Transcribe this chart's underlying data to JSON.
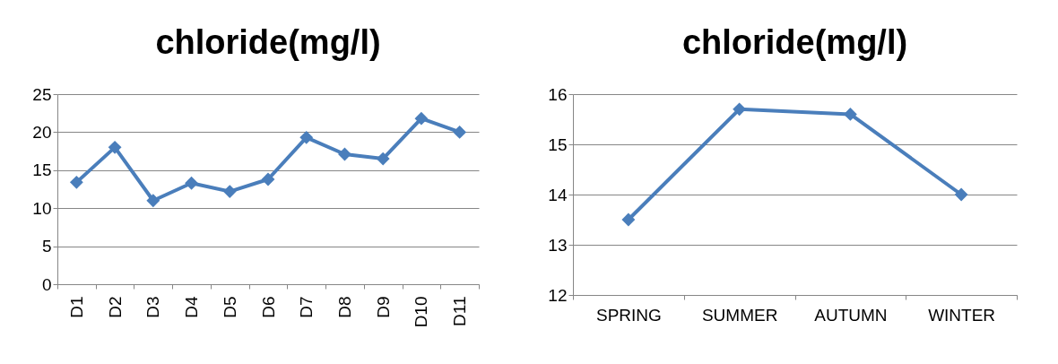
{
  "chart_data": [
    {
      "type": "line",
      "title": "chloride(mg/l)",
      "categories": [
        "D1",
        "D2",
        "D3",
        "D4",
        "D5",
        "D6",
        "D7",
        "D8",
        "D9",
        "D10",
        "D11"
      ],
      "series": [
        {
          "color": "#4a7ebb",
          "values": [
            13.4,
            18.0,
            11.0,
            13.3,
            12.2,
            13.8,
            19.3,
            17.1,
            16.5,
            21.8,
            20.0
          ]
        }
      ],
      "ylim": [
        0,
        25
      ],
      "yticks": [
        0,
        5,
        10,
        15,
        20,
        25
      ],
      "grid": "y",
      "marker": "diamond",
      "line_style": "solid"
    },
    {
      "type": "line",
      "title": "chloride(mg/l)",
      "categories": [
        "SPRING",
        "SUMMER",
        "AUTUMN",
        "WINTER"
      ],
      "series": [
        {
          "color": "#4a7ebb",
          "values": [
            13.5,
            15.7,
            15.6,
            14.0
          ]
        }
      ],
      "ylim": [
        12,
        16
      ],
      "yticks": [
        12,
        13,
        14,
        15,
        16
      ],
      "grid": "y",
      "marker": "diamond",
      "line_style": "solid"
    }
  ]
}
